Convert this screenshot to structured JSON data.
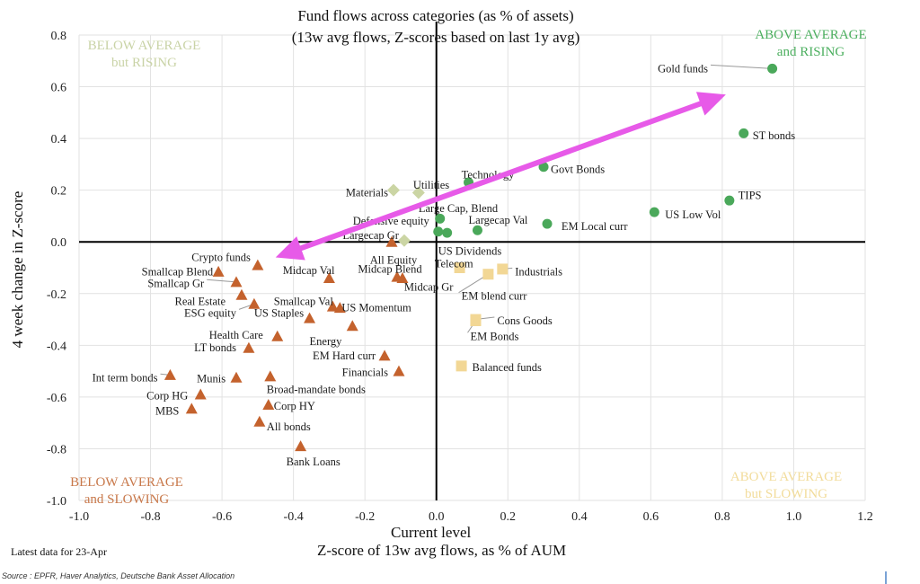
{
  "title": "Fund flows across categories (as % of assets)",
  "subtitle": "(13w avg flows, Z-scores based on last 1y avg)",
  "quadrants": {
    "top_left": [
      "BELOW AVERAGE",
      "but RISING"
    ],
    "top_right": [
      "ABOVE AVERAGE",
      "and RISING"
    ],
    "bottom_left": [
      "BELOW AVERAGE",
      "and SLOWING"
    ],
    "bottom_right": [
      "ABOVE AVERAGE",
      "but SLOWING"
    ]
  },
  "colors": {
    "green": "#4aa85a",
    "orange": "#c4622d",
    "yellow": "#f2d795",
    "olive": "#cbd5a4",
    "arrow": "#e75ae8",
    "grid": "#e2e2e2",
    "axis": "#000000"
  },
  "xlabel_line1": "Current level",
  "xlabel_line2": "Z-score of 13w avg flows, as % of AUM",
  "ylabel": "4 week change in Z-score",
  "footnote": "Latest data for 23-Apr",
  "source": "Source : EPFR, Haver Analytics, Deutsche Bank Asset Allocation",
  "chart_data": {
    "type": "scatter",
    "title": "Fund flows across categories (as % of assets)",
    "subtitle": "(13w avg flows, Z-scores based on last 1y avg)",
    "xlabel": "Current level — Z-score of 13w avg flows, as % of AUM",
    "ylabel": "4 week change in Z-score",
    "xlim": [
      -1.0,
      1.2
    ],
    "ylim": [
      -1.0,
      0.8
    ],
    "xticks": [
      "-1.0",
      "-0.8",
      "-0.6",
      "-0.4",
      "-0.2",
      "0.0",
      "0.2",
      "0.4",
      "0.6",
      "0.8",
      "1.0",
      "1.2"
    ],
    "yticks": [
      "0.8",
      "0.6",
      "0.4",
      "0.2",
      "0.0",
      "-0.2",
      "-0.4",
      "-0.6",
      "-0.8",
      "-1.0"
    ],
    "grid": true,
    "annotation_arrow": {
      "from": [
        -0.45,
        -0.06
      ],
      "to": [
        0.81,
        0.57
      ],
      "style": "double-headed"
    },
    "series": [
      {
        "name": "Above average and rising",
        "marker": "circle",
        "color": "#4aa85a",
        "points": [
          {
            "label": "Gold funds",
            "x": 0.94,
            "y": 0.67,
            "lx": 0.76,
            "ly": 0.67,
            "anchor": "end",
            "leader": true
          },
          {
            "label": "ST bonds",
            "x": 0.86,
            "y": 0.42,
            "lx": 0.885,
            "ly": 0.41,
            "anchor": "start"
          },
          {
            "label": "TIPS",
            "x": 0.82,
            "y": 0.16,
            "lx": 0.845,
            "ly": 0.18,
            "anchor": "start"
          },
          {
            "label": "US Low Vol",
            "x": 0.61,
            "y": 0.115,
            "lx": 0.64,
            "ly": 0.105,
            "anchor": "start"
          },
          {
            "label": "Govt Bonds",
            "x": 0.3,
            "y": 0.29,
            "lx": 0.32,
            "ly": 0.28,
            "anchor": "start"
          },
          {
            "label": "Technology",
            "x": 0.09,
            "y": 0.23,
            "lx": 0.07,
            "ly": 0.26,
            "anchor": "start"
          },
          {
            "label": "EM Local curr",
            "x": 0.31,
            "y": 0.07,
            "lx": 0.35,
            "ly": 0.06,
            "anchor": "start"
          },
          {
            "label": "Largecap Val",
            "x": 0.115,
            "y": 0.045,
            "lx": 0.09,
            "ly": 0.085,
            "anchor": "start"
          },
          {
            "label": "Large Cap, Blend",
            "x": 0.01,
            "y": 0.09,
            "lx": -0.05,
            "ly": 0.13,
            "anchor": "start"
          },
          {
            "label": "Defensive equity",
            "x": 0.005,
            "y": 0.04,
            "lx": -0.02,
            "ly": 0.08,
            "anchor": "end"
          },
          {
            "label": "US Dividends",
            "x": 0.03,
            "y": 0.035,
            "lx": 0.005,
            "ly": -0.035,
            "anchor": "start"
          }
        ]
      },
      {
        "name": "Below average but rising",
        "marker": "diamond",
        "color": "#cbd5a4",
        "points": [
          {
            "label": "Materials",
            "x": -0.12,
            "y": 0.2,
            "lx": -0.135,
            "ly": 0.19,
            "anchor": "end"
          },
          {
            "label": "Utilities",
            "x": -0.05,
            "y": 0.19,
            "lx": -0.065,
            "ly": 0.22,
            "anchor": "start"
          },
          {
            "label": "Largecap Gr",
            "x": -0.09,
            "y": 0.005,
            "lx": -0.105,
            "ly": 0.025,
            "anchor": "end"
          }
        ]
      },
      {
        "name": "Below average and slowing",
        "marker": "triangle",
        "color": "#c4622d",
        "points": [
          {
            "label": "All Equity",
            "x": -0.125,
            "y": 0.0,
            "lx": -0.12,
            "ly": -0.07,
            "anchor": "middle"
          },
          {
            "label": "Crypto funds",
            "x": -0.5,
            "y": -0.09,
            "lx": -0.52,
            "ly": -0.06,
            "anchor": "end"
          },
          {
            "label": "Smallcap Blend",
            "x": -0.61,
            "y": -0.115,
            "lx": -0.625,
            "ly": -0.115,
            "anchor": "end"
          },
          {
            "label": "Smallcap Gr",
            "x": -0.56,
            "y": -0.155,
            "lx": -0.65,
            "ly": -0.16,
            "anchor": "end",
            "leader": true
          },
          {
            "label": "Real Estate",
            "x": -0.545,
            "y": -0.205,
            "lx": -0.59,
            "ly": -0.23,
            "anchor": "end"
          },
          {
            "label": "ESG equity",
            "x": -0.51,
            "y": -0.24,
            "lx": -0.56,
            "ly": -0.275,
            "anchor": "end",
            "leader": true
          },
          {
            "label": "US Staples",
            "x": -0.355,
            "y": -0.295,
            "lx": -0.51,
            "ly": -0.275,
            "anchor": "start"
          },
          {
            "label": "Midcap Val",
            "x": -0.3,
            "y": -0.14,
            "lx": -0.43,
            "ly": -0.11,
            "anchor": "start"
          },
          {
            "label": "Midcap Blend",
            "x": -0.11,
            "y": -0.135,
            "lx": -0.13,
            "ly": -0.105,
            "anchor": "middle"
          },
          {
            "label": "Midcap Gr",
            "x": -0.095,
            "y": -0.14,
            "lx": -0.09,
            "ly": -0.175,
            "anchor": "start"
          },
          {
            "label": "Smallcap Val",
            "x": -0.29,
            "y": -0.25,
            "lx": -0.455,
            "ly": -0.23,
            "anchor": "start"
          },
          {
            "label": "US Momentum",
            "x": -0.27,
            "y": -0.255,
            "lx": -0.265,
            "ly": -0.255,
            "anchor": "start"
          },
          {
            "label": "Energy",
            "x": -0.235,
            "y": -0.325,
            "lx": -0.355,
            "ly": -0.385,
            "anchor": "start"
          },
          {
            "label": "Health Care",
            "x": -0.445,
            "y": -0.365,
            "lx": -0.485,
            "ly": -0.36,
            "anchor": "end"
          },
          {
            "label": "LT bonds",
            "x": -0.525,
            "y": -0.41,
            "lx": -0.56,
            "ly": -0.41,
            "anchor": "end"
          },
          {
            "label": "EM Hard curr",
            "x": -0.145,
            "y": -0.44,
            "lx": -0.17,
            "ly": -0.44,
            "anchor": "end"
          },
          {
            "label": "Financials",
            "x": -0.105,
            "y": -0.5,
            "lx": -0.135,
            "ly": -0.505,
            "anchor": "end"
          },
          {
            "label": "Int term bonds",
            "x": -0.745,
            "y": -0.515,
            "lx": -0.78,
            "ly": -0.525,
            "anchor": "end",
            "leader": true
          },
          {
            "label": "Munis",
            "x": -0.56,
            "y": -0.525,
            "lx": -0.59,
            "ly": -0.53,
            "anchor": "end"
          },
          {
            "label": "Broad-mandate bonds",
            "x": -0.465,
            "y": -0.52,
            "lx": -0.475,
            "ly": -0.57,
            "anchor": "start"
          },
          {
            "label": "Corp HG",
            "x": -0.66,
            "y": -0.59,
            "lx": -0.695,
            "ly": -0.595,
            "anchor": "end"
          },
          {
            "label": "MBS",
            "x": -0.685,
            "y": -0.645,
            "lx": -0.72,
            "ly": -0.655,
            "anchor": "end"
          },
          {
            "label": "Corp HY",
            "x": -0.47,
            "y": -0.63,
            "lx": -0.455,
            "ly": -0.635,
            "anchor": "start"
          },
          {
            "label": "All bonds",
            "x": -0.495,
            "y": -0.695,
            "lx": -0.475,
            "ly": -0.715,
            "anchor": "start"
          },
          {
            "label": "Bank Loans",
            "x": -0.38,
            "y": -0.79,
            "lx": -0.42,
            "ly": -0.85,
            "anchor": "start"
          }
        ]
      },
      {
        "name": "Above average but slowing",
        "marker": "square",
        "color": "#f2d795",
        "points": [
          {
            "label": "Telecom",
            "x": 0.065,
            "y": -0.1,
            "lx": -0.005,
            "ly": -0.085,
            "anchor": "start"
          },
          {
            "label": "Industrials",
            "x": 0.185,
            "y": -0.105,
            "lx": 0.22,
            "ly": -0.115,
            "anchor": "start",
            "leader": true
          },
          {
            "label": "EM blend curr",
            "x": 0.145,
            "y": -0.125,
            "lx": 0.07,
            "ly": -0.21,
            "anchor": "start",
            "leader": true
          },
          {
            "label": "Cons Goods",
            "x": 0.11,
            "y": -0.3,
            "lx": 0.17,
            "ly": -0.305,
            "anchor": "start",
            "leader": true
          },
          {
            "label": "EM Bonds",
            "x": 0.11,
            "y": -0.305,
            "lx": 0.095,
            "ly": -0.365,
            "anchor": "start",
            "leader": true
          },
          {
            "label": "Balanced funds",
            "x": 0.07,
            "y": -0.48,
            "lx": 0.1,
            "ly": -0.485,
            "anchor": "start"
          }
        ]
      }
    ]
  }
}
